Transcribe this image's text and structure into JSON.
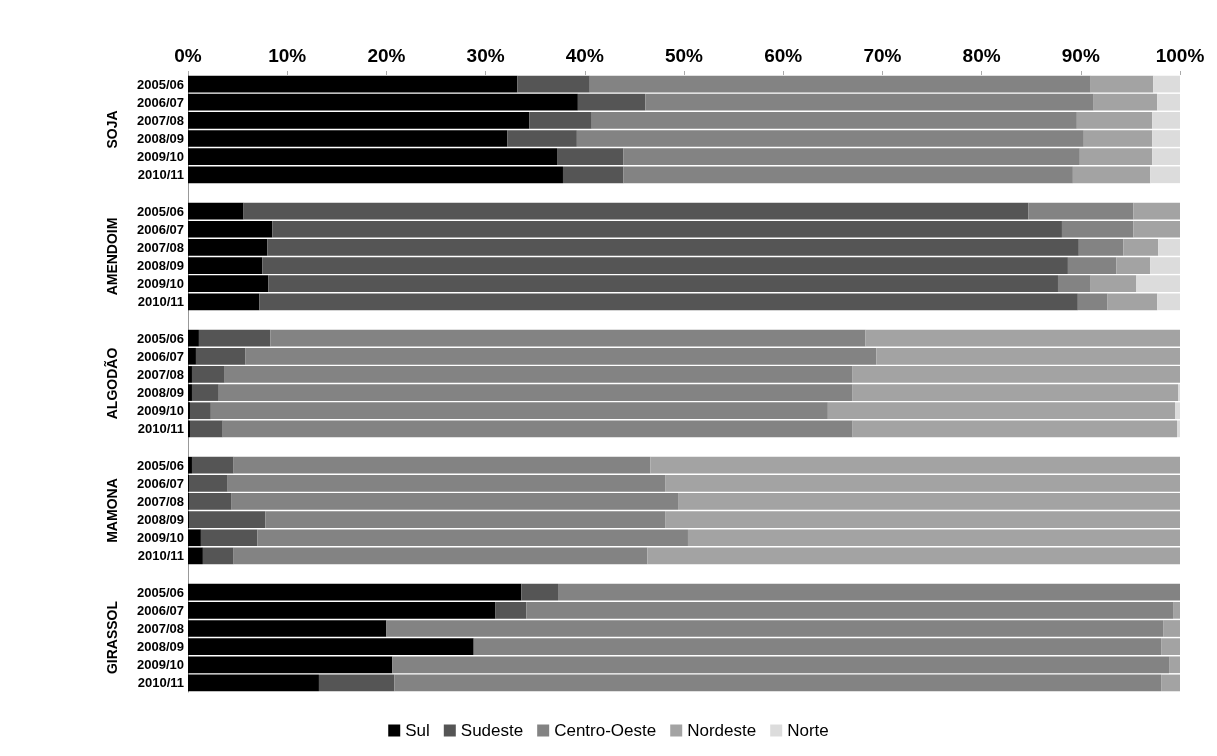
{
  "chart_data": {
    "type": "bar",
    "orientation": "horizontal",
    "stacked": true,
    "categories": [
      "2005/06",
      "2006/07",
      "2007/08",
      "2008/09",
      "2009/10",
      "2010/11",
      null,
      "2005/06",
      "2006/07",
      "2007/08",
      "2008/09",
      "2009/10",
      "2010/11",
      null,
      "2005/06",
      "2006/07",
      "2007/08",
      "2008/09",
      "2009/10",
      "2010/11",
      null,
      "2005/06",
      "2006/07",
      "2007/08",
      "2008/09",
      "2009/10",
      "2010/11",
      null,
      "2005/06",
      "2006/07",
      "2007/08",
      "2008/09",
      "2009/10",
      "2010/11"
    ],
    "annotations": [
      "SOJA",
      "AMENDOIM",
      "ALGODÃO",
      "MAMONA",
      "GIRASSOL"
    ],
    "series": [
      {
        "name": "Sul",
        "color": "#000000",
        "values": [
          33.2,
          39.3,
          34.4,
          32.2,
          37.2,
          37.8,
          null,
          5.6,
          8.5,
          8.0,
          7.5,
          8.1,
          7.2,
          null,
          1.1,
          0.8,
          0.4,
          0.4,
          0.2,
          0.2,
          null,
          0.4,
          0.1,
          0.1,
          0.1,
          1.3,
          1.5,
          null,
          33.6,
          31.0,
          20.0,
          28.8,
          20.6,
          13.2
        ]
      },
      {
        "name": "Sudeste",
        "color": "#555555",
        "values": [
          7.3,
          6.8,
          6.3,
          7.0,
          6.7,
          6.1,
          null,
          79.1,
          79.6,
          81.8,
          81.2,
          79.6,
          82.5,
          null,
          7.2,
          5.0,
          3.3,
          2.7,
          2.1,
          3.3,
          null,
          4.2,
          3.9,
          4.3,
          7.7,
          5.7,
          3.1,
          null,
          3.7,
          3.1,
          0,
          0,
          0,
          7.6
        ]
      },
      {
        "name": "Centro-Oeste",
        "color": "#838383",
        "values": [
          50.5,
          45.2,
          48.9,
          51.1,
          46.0,
          45.3,
          null,
          10.6,
          7.2,
          4.5,
          4.9,
          3.3,
          3.0,
          null,
          60.0,
          63.6,
          63.3,
          63.9,
          62.2,
          63.5,
          null,
          42.0,
          44.1,
          45.0,
          40.3,
          43.4,
          41.7,
          null,
          62.7,
          65.2,
          78.3,
          69.3,
          78.3,
          77.3
        ]
      },
      {
        "name": "Nordeste",
        "color": "#a3a3a3",
        "values": [
          6.3,
          6.4,
          7.6,
          6.9,
          7.3,
          7.8,
          null,
          4.7,
          4.7,
          3.5,
          3.4,
          4.6,
          5.0,
          null,
          31.7,
          30.6,
          33.0,
          32.8,
          35.0,
          32.7,
          null,
          53.4,
          51.9,
          50.6,
          51.9,
          49.6,
          53.7,
          null,
          0,
          0.7,
          1.7,
          1.9,
          1.1,
          1.9
        ]
      },
      {
        "name": "Norte",
        "color": "#dcdcdc",
        "values": [
          2.7,
          2.3,
          2.8,
          2.8,
          2.8,
          3.0,
          null,
          0,
          0,
          2.2,
          3.0,
          4.4,
          2.3,
          null,
          0,
          0,
          0,
          0.2,
          0.5,
          0.3,
          null,
          0,
          0,
          0,
          0,
          0,
          0,
          null,
          0,
          0,
          0,
          0,
          0,
          0
        ]
      }
    ],
    "xlim": [
      0,
      100
    ],
    "xticks": [
      {
        "value": 0,
        "label": "0%"
      },
      {
        "value": 10,
        "label": "10%"
      },
      {
        "value": 20,
        "label": "20%"
      },
      {
        "value": 30,
        "label": "30%"
      },
      {
        "value": 40,
        "label": "40%"
      },
      {
        "value": 50,
        "label": "50%"
      },
      {
        "value": 60,
        "label": "60%"
      },
      {
        "value": 70,
        "label": "70%"
      },
      {
        "value": 80,
        "label": "80%"
      },
      {
        "value": 90,
        "label": "90%"
      },
      {
        "value": 100,
        "label": "100%"
      }
    ],
    "legend": "bottom"
  }
}
